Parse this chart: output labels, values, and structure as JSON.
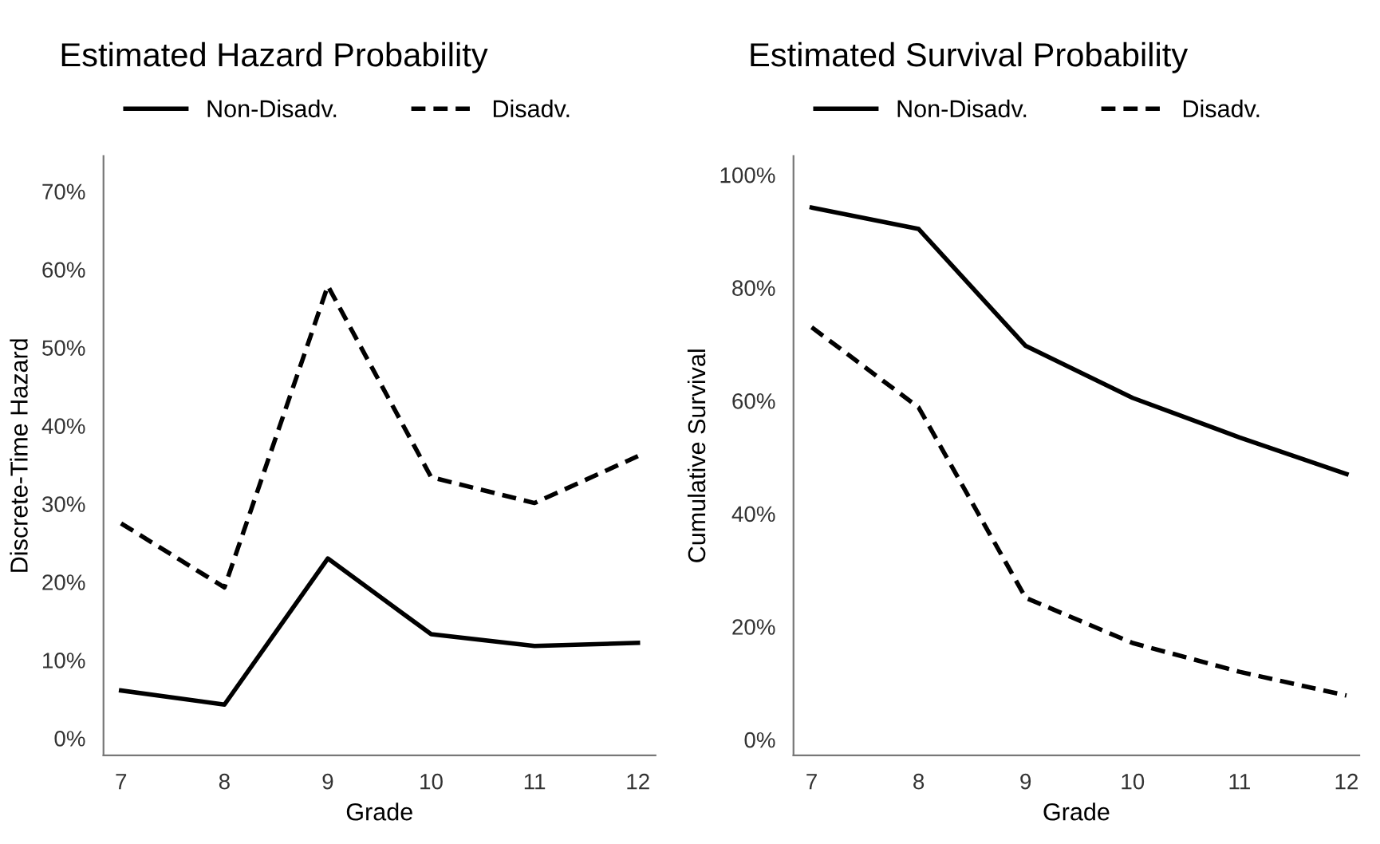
{
  "chart_data": [
    {
      "type": "line",
      "title": "Estimated Hazard Probability",
      "xlabel": "Grade",
      "ylabel": "Discrete-Time Hazard",
      "x": [
        7,
        8,
        9,
        10,
        11,
        12
      ],
      "series": [
        {
          "name": "Non-Disadv.",
          "color": "#000000",
          "line_style": "solid",
          "values": [
            6.1,
            4.3,
            23.0,
            13.3,
            11.8,
            12.2
          ]
        },
        {
          "name": "Disadv.",
          "color": "#000000",
          "line_style": "dashed",
          "values": [
            27.5,
            19.3,
            57.9,
            33.4,
            30.1,
            36.1
          ]
        }
      ],
      "xlim": [
        6.83,
        12.17
      ],
      "xticks": [
        7,
        8,
        9,
        10,
        11,
        12
      ],
      "ylim": [
        -2.2,
        74.5
      ],
      "yticks": [
        {
          "value": 0,
          "label": "0%"
        },
        {
          "value": 10,
          "label": "10%"
        },
        {
          "value": 20,
          "label": "20%"
        },
        {
          "value": 30,
          "label": "30%"
        },
        {
          "value": 40,
          "label": "40%"
        },
        {
          "value": 50,
          "label": "50%"
        },
        {
          "value": 60,
          "label": "60%"
        },
        {
          "value": 70,
          "label": "70%"
        }
      ],
      "grid": false,
      "legend": "top",
      "marker": "none"
    },
    {
      "type": "line",
      "title": "Estimated Survival Probability",
      "xlabel": "Grade",
      "ylabel": "Cumulative Survival",
      "x": [
        7,
        8,
        9,
        10,
        11,
        12
      ],
      "series": [
        {
          "name": "Non-Disadv.",
          "color": "#000000",
          "line_style": "solid",
          "values": [
            94.2,
            90.4,
            69.7,
            60.5,
            53.5,
            47.0
          ]
        },
        {
          "name": "Disadv.",
          "color": "#000000",
          "line_style": "dashed",
          "values": [
            73.0,
            58.8,
            25.1,
            17.1,
            12.0,
            7.8
          ]
        }
      ],
      "xlim": [
        6.83,
        12.12
      ],
      "xticks": [
        7,
        8,
        9,
        10,
        11,
        12
      ],
      "ylim": [
        -2.8,
        103.3
      ],
      "yticks": [
        {
          "value": 0,
          "label": "0%"
        },
        {
          "value": 20,
          "label": "20%"
        },
        {
          "value": 40,
          "label": "40%"
        },
        {
          "value": 60,
          "label": "60%"
        },
        {
          "value": 80,
          "label": "80%"
        },
        {
          "value": 100,
          "label": "100%"
        }
      ],
      "grid": false,
      "legend": "top",
      "marker": "none"
    }
  ]
}
